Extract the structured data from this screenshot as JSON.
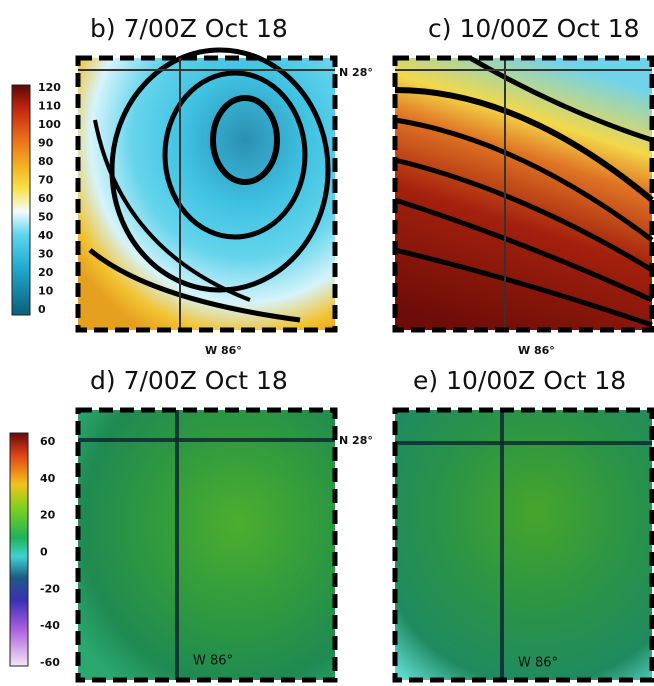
{
  "panels": [
    {
      "label": "b) 7/00Z Oct 18"
    },
    {
      "label": "c) 10/00Z Oct 18"
    },
    {
      "label": "d) 7/00Z Oct 18"
    },
    {
      "label": "e) 10/00Z Oct 18"
    }
  ],
  "colorbars": [
    {
      "ticks": [
        "120",
        "110",
        "100",
        "90",
        "80",
        "70",
        "60",
        "50",
        "40",
        "30",
        "20",
        "10",
        "0"
      ]
    },
    {
      "ticks": [
        "60",
        "40",
        "20",
        "0",
        "-20",
        "-40",
        "-60"
      ]
    }
  ],
  "annotations": {
    "lat_top": "N 28°",
    "lon_b": "W 86°",
    "lon_c": "W 86°",
    "lat_bottom": "N 28°",
    "lon_d": "W 86°",
    "lon_e": "W 86°"
  }
}
